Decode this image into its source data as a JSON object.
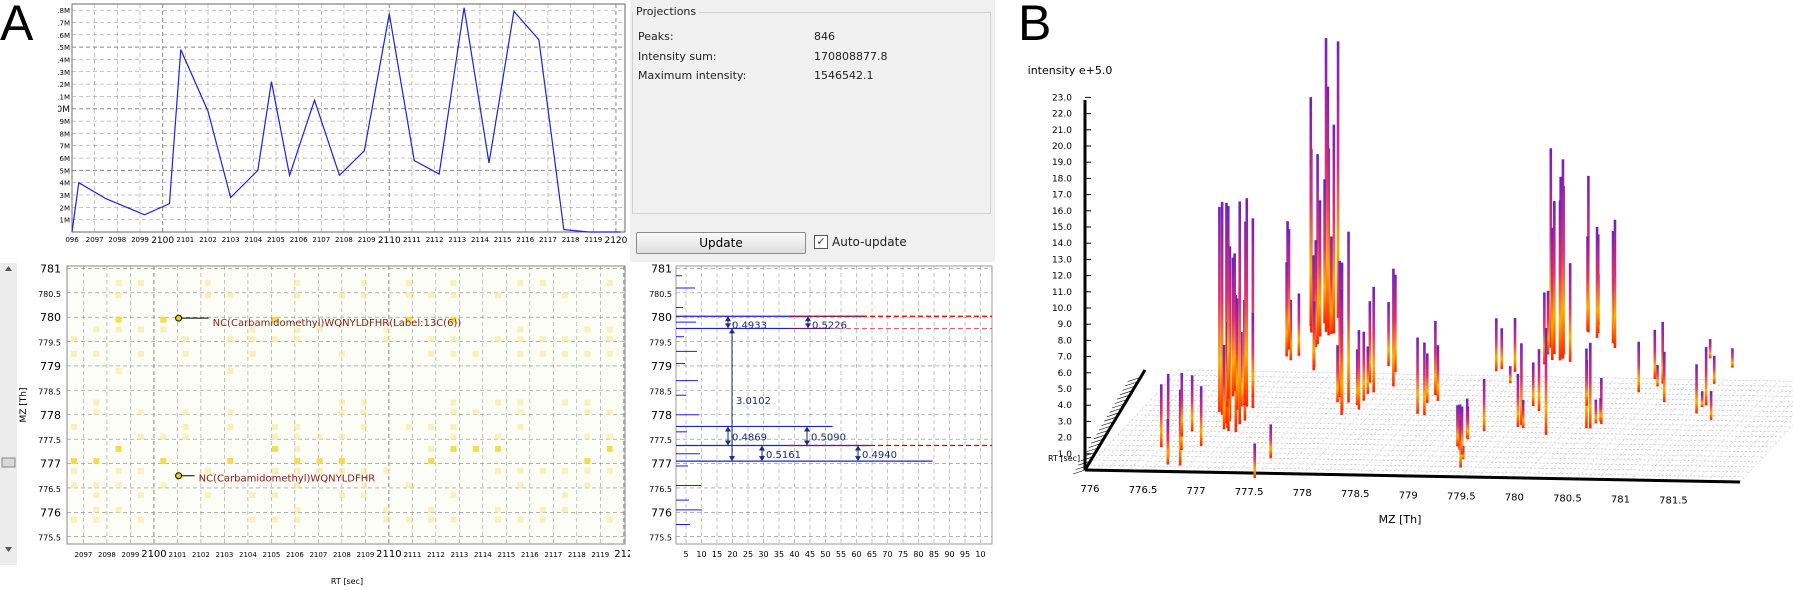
{
  "panel_labels": {
    "left": "A",
    "right": "B"
  },
  "colors": {
    "line": "#1f1fe0",
    "grid": "#888888",
    "feature": "#f3e88a",
    "label": "#8b1a1a",
    "red_dash": "#e00000",
    "annotation": "#1c2a80"
  },
  "rt_chart": {
    "y_ticks": [
      "1M",
      "2M",
      "3M",
      "4M",
      "5M",
      "6M",
      "7M",
      "8M",
      "9M",
      "10M",
      "11M",
      "12M",
      "13M",
      "14M",
      "15M",
      "16M",
      "17M",
      "18M"
    ],
    "x_ticks": [
      "096",
      "2097",
      "2098",
      "2099",
      "2100",
      "2101",
      "2102",
      "2103",
      "2104",
      "2105",
      "2106",
      "2107",
      "2108",
      "2109",
      "2110",
      "2111",
      "2112",
      "2113",
      "2114",
      "2115",
      "2116",
      "2117",
      "2118",
      "2119",
      "2120"
    ]
  },
  "chart_data": {
    "type": "line",
    "x": [
      2096,
      2096.3,
      2097.5,
      2099.2,
      2100.3,
      2100.8,
      2102,
      2103,
      2104.2,
      2104.8,
      2105.6,
      2106.7,
      2107.8,
      2108.9,
      2110,
      2111.1,
      2112.2,
      2113.3,
      2114.4,
      2115.5,
      2116.6,
      2117.7,
      2118.8,
      2119.9,
      2120.2
    ],
    "y": [
      0,
      4.0,
      2.7,
      1.4,
      2.3,
      14.8,
      9.8,
      2.8,
      5.0,
      12.2,
      4.6,
      10.7,
      4.6,
      6.6,
      17.7,
      5.8,
      4.7,
      18.2,
      5.6,
      17.9,
      15.6,
      0.2,
      0,
      0,
      0
    ],
    "xlabel": "",
    "ylabel": "",
    "ylim": [
      0,
      18.5
    ],
    "grid": true
  },
  "projections": {
    "title": "Projections",
    "rows": [
      {
        "label": "Peaks:",
        "value": "846"
      },
      {
        "label": "Intensity sum:",
        "value": "170808877.8"
      },
      {
        "label": "Maximum intensity:",
        "value": "1546542.1"
      }
    ],
    "update_button": "Update",
    "auto_update_label": "Auto-update",
    "auto_update_checked": "✓"
  },
  "map": {
    "y_axis_label": "MZ [Th]",
    "x_axis_label": "RT [sec]",
    "y_ticks": [
      "781",
      "780.5",
      "780",
      "779.5",
      "779",
      "778.5",
      "778",
      "777.5",
      "777",
      "776.5",
      "776",
      "775.5"
    ],
    "x_ticks": [
      "2097",
      "2098",
      "2099",
      "2100",
      "2101",
      "2102",
      "2103",
      "2104",
      "2105",
      "2106",
      "2107",
      "2108",
      "2109",
      "2110",
      "2111",
      "2112",
      "2113",
      "2114",
      "2115",
      "2116",
      "2117",
      "2118",
      "2119",
      "212"
    ],
    "annotations": [
      {
        "text": "NC(Carbamidomethyl)WQNYLDFHR(Label:13C(6))"
      },
      {
        "text": "NC(Carbamidomethyl)WQNYLDFHR"
      }
    ]
  },
  "spectrum": {
    "y_ticks": [
      "781",
      "780.5",
      "780",
      "779.5",
      "779",
      "778.5",
      "778",
      "777.5",
      "777",
      "776.5",
      "776",
      "775.5"
    ],
    "x_ticks": [
      "5",
      "10",
      "15",
      "20",
      "25",
      "30",
      "35",
      "40",
      "45",
      "50",
      "55",
      "60",
      "65",
      "70",
      "75",
      "80",
      "85",
      "90",
      "95",
      "10"
    ],
    "measures": [
      "0.4933",
      "0.5226",
      "3.0102",
      "0.4869",
      "0.5090",
      "0.5161",
      "0.4940"
    ]
  },
  "plot3d": {
    "z_axis_label": "intensity e+5.0",
    "z_ticks": [
      "23.0",
      "22.0",
      "21.0",
      "20.0",
      "19.0",
      "18.0",
      "17.0",
      "16.0",
      "15.0",
      "14.0",
      "13.0",
      "12.0",
      "11.0",
      "10.0",
      "9.0",
      "8.0",
      "7.0",
      "6.0",
      "5.0",
      "4.0",
      "3.0",
      "2.0",
      "1.0"
    ],
    "x_ticks": [
      "776",
      "776.5",
      "777",
      "777.5",
      "778",
      "778.5",
      "779",
      "779.5",
      "780",
      "780.5",
      "781",
      "781.5"
    ],
    "x_axis_label": "MZ [Th]",
    "side_label": "RT [sec]"
  }
}
